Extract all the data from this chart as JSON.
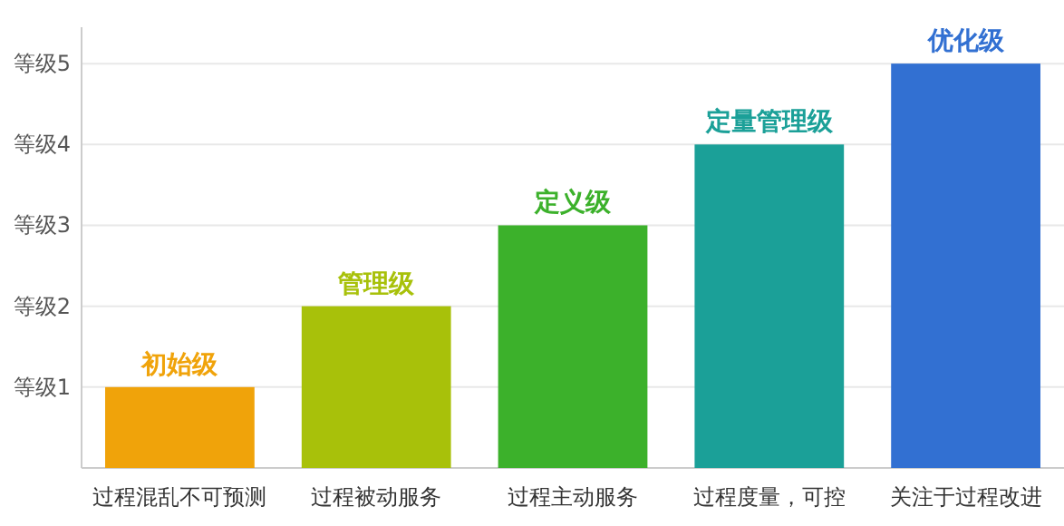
{
  "chart_data": {
    "type": "bar",
    "ylim": [
      0,
      5.45
    ],
    "categories": [
      "过程混乱不可预测",
      "过程被动服务",
      "过程主动服务",
      "过程度量，可控",
      "关注于过程改进"
    ],
    "values": [
      1,
      2,
      3,
      4,
      5
    ],
    "colors": [
      "#f0a30a",
      "#a8c10a",
      "#3cb12b",
      "#1ba098",
      "#3270d2"
    ],
    "value_labels": [
      "初始级",
      "管理级",
      "定义级",
      "定量管理级",
      "优化级"
    ],
    "ref_lines": [
      {
        "axis": "y",
        "value": 1,
        "label": "等级1",
        "color": "#e8e8e8"
      },
      {
        "axis": "y",
        "value": 2,
        "label": "等级2",
        "color": "#e8e8e8"
      },
      {
        "axis": "y",
        "value": 3,
        "label": "等级3",
        "color": "#e8e8e8"
      },
      {
        "axis": "y",
        "value": 4,
        "label": "等级4",
        "color": "#e8e8e8"
      },
      {
        "axis": "y",
        "value": 5,
        "label": "等级5",
        "color": "#e8e8e8"
      }
    ]
  }
}
